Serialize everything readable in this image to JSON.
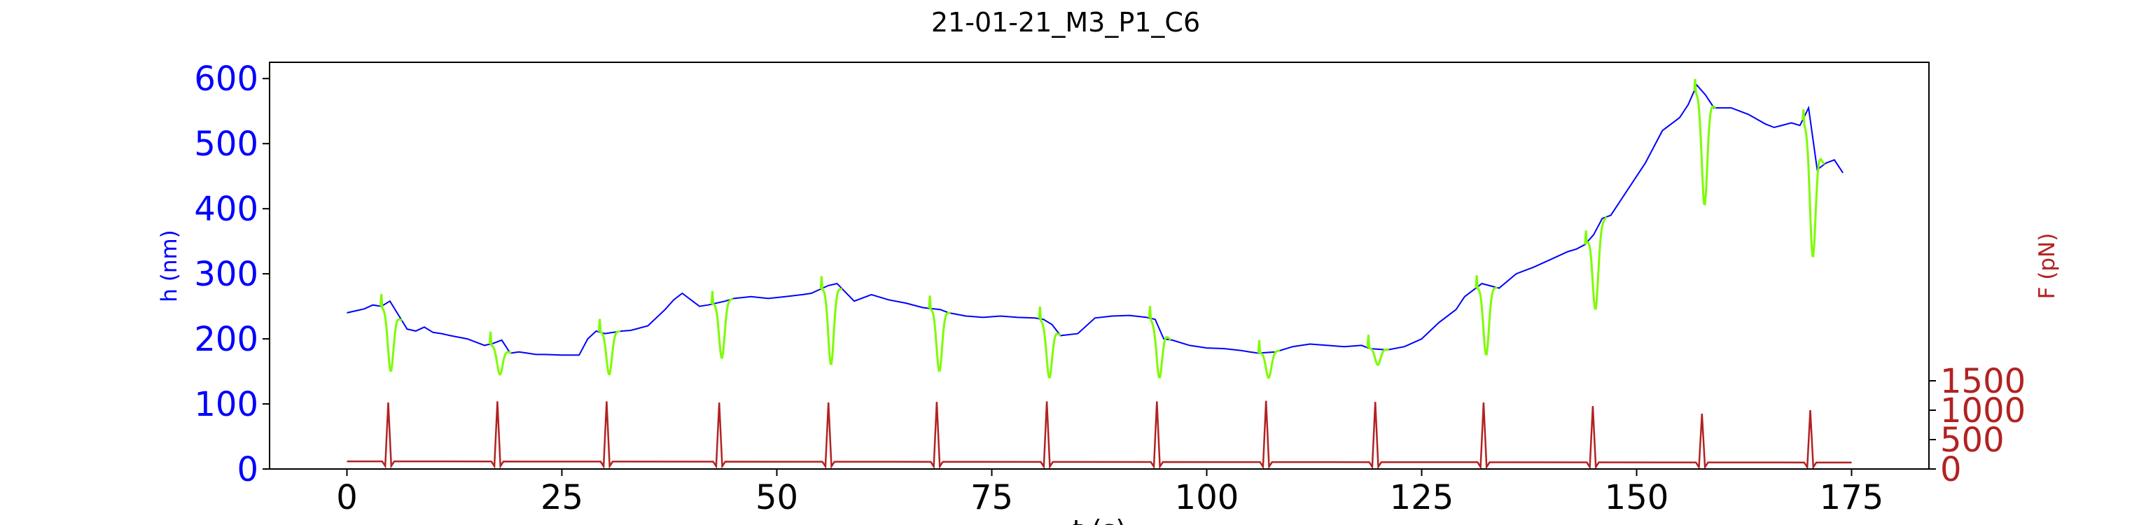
{
  "chart_data": {
    "type": "line",
    "title": "21-01-21_M3_P1_C6",
    "xlabel": "t (s)",
    "ylabel_left": "h (nm)",
    "ylabel_right": "F (pN)",
    "xlim": [
      -9,
      184
    ],
    "ylim_left": [
      0,
      625
    ],
    "ylim_right": [
      0,
      1500
    ],
    "x_ticks": [
      0,
      25,
      50,
      75,
      100,
      125,
      150,
      175
    ],
    "y_ticks_left": [
      0,
      100,
      200,
      300,
      400,
      500,
      600
    ],
    "y_ticks_right": [
      0,
      500,
      1000,
      1500
    ],
    "grid": false,
    "colors": {
      "height": "#0000ff",
      "height_pulse": "#7cfc00",
      "force": "#b22222",
      "left_axis": "#0000ff",
      "right_axis": "#b22222"
    },
    "series": [
      {
        "id": "height",
        "axis": "left",
        "x": [
          0,
          2,
          3,
          4,
          5,
          7,
          8,
          9,
          10,
          11,
          12,
          14,
          16,
          17,
          18,
          19,
          20,
          21,
          22,
          23,
          25,
          27,
          28,
          29,
          30,
          32,
          33,
          35,
          37,
          38,
          39,
          41,
          42,
          44,
          45,
          47,
          49,
          51,
          53,
          54,
          56,
          57,
          59,
          61,
          63,
          65,
          67,
          69,
          70,
          72,
          74,
          76,
          78,
          80,
          81,
          82,
          83,
          85,
          87,
          89,
          91,
          93,
          94,
          95,
          96,
          98,
          100,
          102,
          104,
          105,
          106,
          108,
          110,
          112,
          114,
          116,
          118,
          119,
          121,
          123,
          125,
          127,
          129,
          130,
          131,
          132,
          134,
          136,
          138,
          140,
          142,
          143,
          144,
          145,
          146,
          147,
          149,
          151,
          153,
          155,
          156,
          157,
          158,
          159,
          161,
          163,
          165,
          166,
          168,
          169,
          170,
          171,
          172,
          173,
          174
        ],
        "values": [
          240,
          246,
          252,
          250,
          258,
          215,
          212,
          218,
          210,
          208,
          205,
          200,
          190,
          193,
          198,
          178,
          180,
          178,
          176,
          176,
          175,
          175,
          200,
          212,
          208,
          212,
          213,
          220,
          245,
          260,
          270,
          250,
          252,
          258,
          262,
          265,
          262,
          265,
          268,
          270,
          282,
          285,
          258,
          268,
          260,
          255,
          248,
          245,
          240,
          235,
          233,
          235,
          233,
          232,
          230,
          222,
          205,
          208,
          232,
          235,
          236,
          233,
          230,
          200,
          198,
          190,
          186,
          185,
          182,
          180,
          178,
          180,
          188,
          192,
          190,
          188,
          190,
          185,
          183,
          188,
          200,
          225,
          245,
          265,
          275,
          285,
          278,
          300,
          310,
          322,
          334,
          338,
          345,
          360,
          385,
          390,
          430,
          470,
          520,
          540,
          560,
          590,
          575,
          555,
          555,
          545,
          530,
          525,
          532,
          528,
          555,
          460,
          470,
          475,
          455
        ]
      },
      {
        "id": "force",
        "axis": "right",
        "pulse_times": [
          4.8,
          17.5,
          30.2,
          43.3,
          56.0,
          68.6,
          81.4,
          94.2,
          106.9,
          119.6,
          132.2,
          144.9,
          157.6,
          170.2
        ],
        "pulse_peaks": [
          1130,
          1150,
          1150,
          1130,
          1130,
          1140,
          1150,
          1150,
          1160,
          1140,
          1130,
          1070,
          940,
          1000
        ],
        "baseline_start": 130,
        "baseline_end": 110,
        "x_start": 0,
        "x_end": 175
      }
    ],
    "pulse_dips_nm": [
      {
        "t": 4.8,
        "min": 150
      },
      {
        "t": 17.5,
        "min": 145
      },
      {
        "t": 30.2,
        "min": 145
      },
      {
        "t": 43.3,
        "min": 170
      },
      {
        "t": 56.0,
        "min": 160
      },
      {
        "t": 68.6,
        "min": 150
      },
      {
        "t": 81.4,
        "min": 140
      },
      {
        "t": 94.2,
        "min": 140
      },
      {
        "t": 106.9,
        "min": 140
      },
      {
        "t": 119.6,
        "min": 160
      },
      {
        "t": 132.2,
        "min": 175
      },
      {
        "t": 144.9,
        "min": 245
      },
      {
        "t": 157.6,
        "min": 405
      },
      {
        "t": 170.2,
        "min": 325
      }
    ]
  }
}
